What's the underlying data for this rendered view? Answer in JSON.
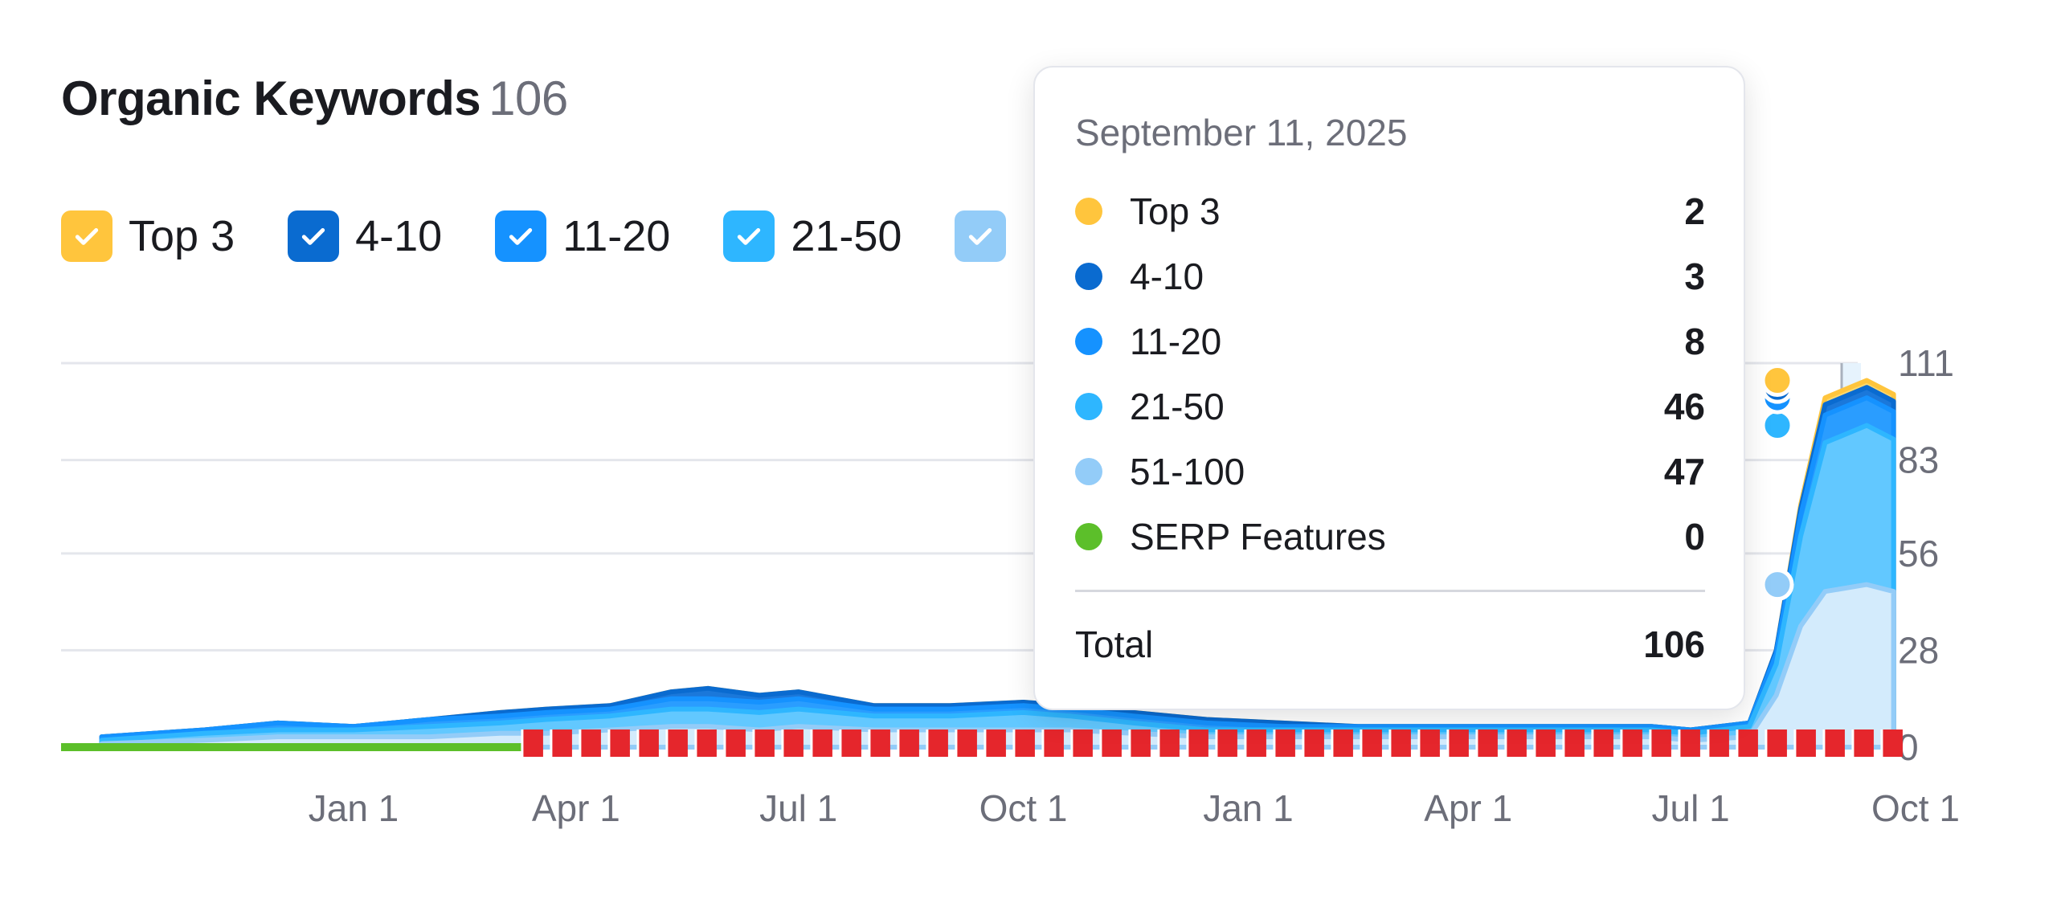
{
  "header": {
    "title": "Organic Keywords",
    "count": "106"
  },
  "legend": [
    {
      "label": "Top 3",
      "color": "#ffc53d"
    },
    {
      "label": "4-10",
      "color": "#0a6bd0"
    },
    {
      "label": "11-20",
      "color": "#1592ff"
    },
    {
      "label": "21-50",
      "color": "#2eb6ff"
    },
    {
      "label": "",
      "color": "#93ccf8"
    }
  ],
  "tooltip": {
    "date": "September 11, 2025",
    "rows": [
      {
        "label": "Top 3",
        "value": "2",
        "color": "#ffc53d"
      },
      {
        "label": "4-10",
        "value": "3",
        "color": "#0a6bd0"
      },
      {
        "label": "11-20",
        "value": "8",
        "color": "#1592ff"
      },
      {
        "label": "21-50",
        "value": "46",
        "color": "#2eb6ff"
      },
      {
        "label": "51-100",
        "value": "47",
        "color": "#93ccf8"
      },
      {
        "label": "SERP Features",
        "value": "0",
        "color": "#5cbf2a"
      }
    ],
    "total_label": "Total",
    "total_value": "106"
  },
  "chart_data": {
    "type": "area",
    "stacked": true,
    "x_ticks": [
      "Jan 1",
      "Apr 1",
      "Jul 1",
      "Oct 1",
      "Jan 1",
      "Apr 1",
      "Jul 1",
      "Oct 1"
    ],
    "x_tick_dates": [
      "2024-01-01",
      "2024-04-01",
      "2024-07-01",
      "2024-10-01",
      "2025-01-01",
      "2025-04-01",
      "2025-07-01",
      "2025-10-01"
    ],
    "y_ticks": [
      0,
      28,
      56,
      83,
      111
    ],
    "ylim": [
      0,
      111
    ],
    "y_axis_side": "right",
    "grid": true,
    "x": [
      "2023-09-20",
      "2023-11-01",
      "2023-12-01",
      "2024-01-01",
      "2024-02-01",
      "2024-03-01",
      "2024-03-20",
      "2024-04-15",
      "2024-05-10",
      "2024-05-25",
      "2024-06-15",
      "2024-07-01",
      "2024-08-01",
      "2024-09-01",
      "2024-10-01",
      "2024-10-20",
      "2024-11-15",
      "2024-12-15",
      "2025-01-15",
      "2025-02-15",
      "2025-03-15",
      "2025-04-15",
      "2025-05-15",
      "2025-06-15",
      "2025-07-01",
      "2025-07-25",
      "2025-08-05",
      "2025-08-15",
      "2025-08-25",
      "2025-09-11",
      "2025-09-22"
    ],
    "series": [
      {
        "name": "Top 3",
        "values": [
          0,
          0,
          0,
          0,
          0,
          0,
          0,
          0,
          0,
          0,
          0,
          0,
          0,
          0,
          0,
          0,
          0,
          0,
          0,
          0,
          0,
          0,
          0,
          0,
          0,
          0,
          0,
          1,
          2,
          2,
          2
        ]
      },
      {
        "name": "4-10",
        "values": [
          0,
          0,
          0,
          0,
          0,
          1,
          1,
          1,
          2,
          3,
          2,
          2,
          1,
          1,
          1,
          1,
          1,
          1,
          1,
          0,
          0,
          0,
          0,
          0,
          0,
          0,
          1,
          2,
          3,
          3,
          3
        ]
      },
      {
        "name": "11-20",
        "values": [
          1,
          1,
          2,
          1,
          2,
          2,
          2,
          2,
          3,
          3,
          3,
          3,
          2,
          2,
          2,
          2,
          2,
          2,
          1,
          1,
          1,
          1,
          1,
          1,
          1,
          1,
          3,
          6,
          8,
          8,
          8
        ]
      },
      {
        "name": "21-50",
        "values": [
          1,
          2,
          2,
          2,
          3,
          3,
          4,
          4,
          5,
          5,
          5,
          5,
          4,
          4,
          5,
          4,
          3,
          2,
          2,
          2,
          2,
          2,
          2,
          2,
          2,
          3,
          9,
          26,
          43,
          46,
          44
        ]
      },
      {
        "name": "51-100",
        "values": [
          1,
          2,
          3,
          3,
          3,
          4,
          4,
          5,
          6,
          6,
          5,
          6,
          5,
          5,
          5,
          5,
          4,
          3,
          3,
          3,
          3,
          3,
          3,
          3,
          2,
          3,
          15,
          35,
          45,
          47,
          45
        ]
      },
      {
        "name": "SERP Features",
        "values": [
          0,
          0,
          0,
          0,
          0,
          0,
          0,
          0,
          0,
          0,
          0,
          0,
          0,
          0,
          0,
          0,
          0,
          0,
          0,
          0,
          0,
          0,
          0,
          0,
          0,
          0,
          0,
          0,
          0,
          0,
          0
        ]
      }
    ],
    "highlight_date": "2025-09-11",
    "serp_marker_range": [
      "2024-03-10",
      "2025-09-22"
    ]
  }
}
